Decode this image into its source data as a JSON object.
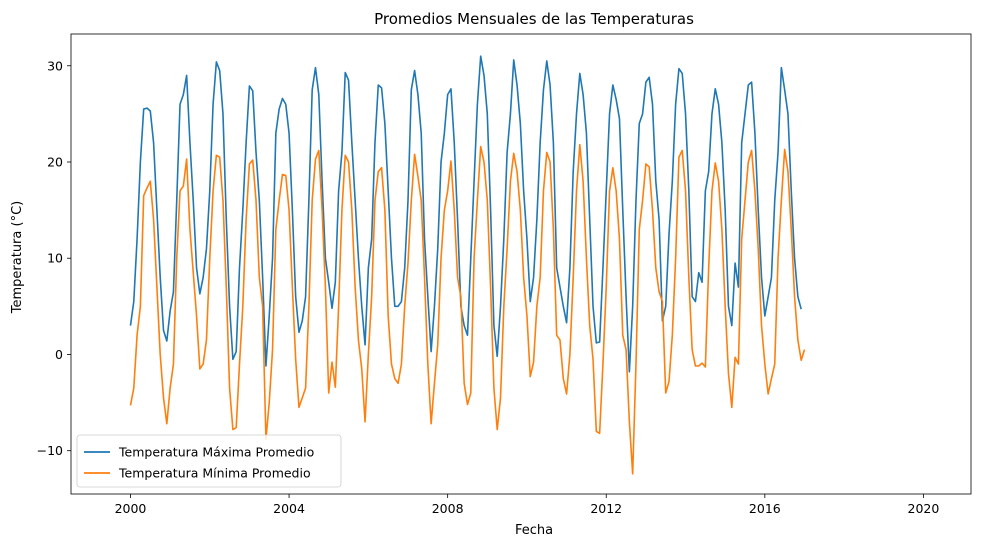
{
  "chart_data": {
    "type": "line",
    "title": "Promedios Mensuales de las Temperaturas",
    "xlabel": "Fecha",
    "ylabel": "Temperatura (°C)",
    "xlim": [
      1998.5,
      2021.2
    ],
    "ylim": [
      -14.5,
      33.3
    ],
    "x_ticks": [
      2000,
      2004,
      2008,
      2012,
      2016,
      2020
    ],
    "x_tick_labels": [
      "2000",
      "2004",
      "2008",
      "2012",
      "2016",
      "2020"
    ],
    "y_ticks": [
      -10,
      0,
      10,
      20,
      30
    ],
    "y_tick_labels": [
      "−10",
      "0",
      "10",
      "20",
      "30"
    ],
    "grid": false,
    "legend": "lower-left",
    "series": [
      {
        "name": "Temperatura Máxima Promedio",
        "color": "#1f77b4",
        "start_year": 2000,
        "values": [
          3.0,
          5.5,
          12.0,
          20.0,
          25.5,
          25.6,
          25.3,
          22.0,
          15.0,
          8.0,
          2.5,
          1.4,
          4.5,
          6.5,
          16.0,
          26.0,
          27.0,
          29.0,
          22.0,
          16.0,
          9.0,
          6.3,
          8.0,
          11.0,
          17.0,
          26.0,
          30.4,
          29.5,
          25.0,
          14.0,
          5.0,
          -0.5,
          0.3,
          9.0,
          15.0,
          22.0,
          27.9,
          27.4,
          21.0,
          16.0,
          8.0,
          -1.2,
          4.0,
          10.0,
          23.0,
          25.5,
          26.6,
          26.0,
          23.0,
          15.0,
          6.0,
          2.3,
          3.5,
          6.0,
          16.0,
          27.5,
          29.8,
          27.0,
          18.0,
          10.0,
          7.5,
          4.8,
          7.5,
          17.0,
          21.0,
          29.3,
          28.5,
          22.0,
          16.0,
          10.0,
          5.0,
          1.0,
          9.0,
          12.0,
          22.0,
          28.0,
          27.7,
          24.0,
          17.0,
          10.0,
          5.0,
          5.0,
          5.5,
          9.0,
          16.0,
          27.5,
          29.5,
          27.0,
          23.0,
          12.0,
          6.0,
          0.3,
          5.0,
          11.0,
          20.0,
          23.0,
          27.0,
          27.6,
          22.0,
          14.0,
          5.0,
          3.0,
          2.0,
          10.0,
          18.0,
          26.0,
          31.0,
          29.0,
          25.0,
          15.0,
          3.0,
          -0.2,
          5.0,
          12.0,
          21.0,
          25.0,
          30.6,
          28.0,
          24.0,
          17.0,
          12.0,
          5.5,
          8.0,
          14.0,
          22.0,
          27.5,
          30.5,
          28.0,
          22.0,
          9.0,
          7.0,
          5.0,
          3.3,
          9.0,
          19.0,
          25.0,
          29.2,
          27.0,
          23.0,
          14.0,
          5.0,
          1.2,
          1.3,
          9.0,
          17.0,
          25.0,
          28.0,
          26.5,
          24.5,
          15.0,
          6.0,
          -1.8,
          5.0,
          16.0,
          24.0,
          25.0,
          28.3,
          28.8,
          26.0,
          18.0,
          14.0,
          3.5,
          5.0,
          12.5,
          18.0,
          26.0,
          29.7,
          29.2,
          25.0,
          17.0,
          6.0,
          5.5,
          8.5,
          7.5,
          17.0,
          19.0,
          25.0,
          27.6,
          26.0,
          22.0,
          15.0,
          5.0,
          3.0,
          9.5,
          7.0,
          22.0,
          25.0,
          28.0,
          28.3,
          23.0,
          15.0,
          8.0,
          4.0,
          6.0,
          8.0,
          16.0,
          21.0,
          29.8,
          27.5,
          25.0,
          17.0,
          10.0,
          6.0,
          4.7
        ]
      },
      {
        "name": "Temperatura Mínima Promedio",
        "color": "#ff7f0e",
        "start_year": 2000,
        "values": [
          -5.3,
          -3.5,
          2.0,
          5.0,
          16.5,
          17.3,
          18.0,
          14.0,
          7.0,
          0.0,
          -4.5,
          -7.2,
          -3.5,
          -1.0,
          10.0,
          17.0,
          17.5,
          20.3,
          13.0,
          8.5,
          4.0,
          -1.5,
          -1.0,
          1.5,
          10.0,
          17.0,
          20.7,
          20.5,
          16.0,
          7.0,
          -3.5,
          -7.8,
          -7.6,
          -1.0,
          5.0,
          14.0,
          19.8,
          20.2,
          16.0,
          8.0,
          5.0,
          -8.8,
          -5.0,
          0.5,
          13.0,
          16.0,
          18.7,
          18.6,
          15.0,
          7.0,
          -0.5,
          -5.5,
          -4.5,
          -3.5,
          5.0,
          16.0,
          20.3,
          21.2,
          15.0,
          7.0,
          -4.0,
          -0.8,
          -3.4,
          5.0,
          15.0,
          20.7,
          20.0,
          15.0,
          7.0,
          1.5,
          -1.5,
          -7.0,
          0.0,
          6.0,
          16.0,
          19.0,
          19.4,
          15.0,
          4.0,
          -1.0,
          -2.5,
          -3.0,
          -1.0,
          5.0,
          9.5,
          16.0,
          20.8,
          18.5,
          16.0,
          8.0,
          -1.0,
          -7.2,
          -3.0,
          1.0,
          10.0,
          15.0,
          17.0,
          20.1,
          15.0,
          8.0,
          6.0,
          -3.0,
          -5.2,
          -4.0,
          10.0,
          16.0,
          21.6,
          20.0,
          16.0,
          7.0,
          -3.5,
          -7.8,
          -4.5,
          5.0,
          11.0,
          18.0,
          20.9,
          19.0,
          15.0,
          8.0,
          4.0,
          -2.3,
          -0.8,
          5.0,
          8.0,
          17.0,
          21.0,
          20.0,
          13.0,
          2.0,
          1.5,
          -2.5,
          -4.1,
          0.0,
          8.0,
          17.0,
          21.8,
          18.0,
          10.0,
          3.0,
          -0.5,
          -8.0,
          -8.2,
          -1.0,
          7.0,
          17.0,
          19.4,
          17.0,
          12.0,
          2.0,
          0.5,
          -7.0,
          -12.4,
          -1.0,
          13.0,
          16.0,
          19.8,
          19.5,
          15.0,
          9.0,
          6.5,
          5.5,
          -4.0,
          -2.8,
          2.0,
          10.0,
          20.5,
          21.2,
          17.0,
          8.0,
          0.5,
          -1.2,
          -1.2,
          -0.9,
          -1.3,
          9.0,
          17.0,
          19.9,
          18.0,
          13.0,
          5.0,
          -2.0,
          -5.5,
          -0.3,
          -1.0,
          12.0,
          16.0,
          20.0,
          21.2,
          17.0,
          11.0,
          3.0,
          -1.0,
          -4.1,
          -2.5,
          -1.0,
          10.0,
          16.0,
          21.3,
          19.0,
          13.0,
          6.0,
          1.5,
          -0.6,
          0.5
        ]
      }
    ]
  }
}
